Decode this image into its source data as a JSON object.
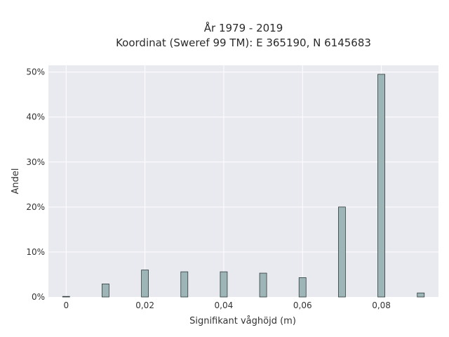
{
  "chart_data": {
    "type": "bar",
    "title_line1": "År 1979 - 2019",
    "title_line2": "Koordinat (Sweref 99 TM): E 365190, N 6145683",
    "xlabel": "Signifikant våghöjd (m)",
    "ylabel": "Andel",
    "x": [
      0.0,
      0.01,
      0.02,
      0.03,
      0.04,
      0.05,
      0.06,
      0.07,
      0.08,
      0.09
    ],
    "values": [
      0.1,
      2.9,
      6.0,
      5.6,
      5.6,
      5.3,
      4.3,
      20.0,
      49.5,
      0.9
    ],
    "xlim": [
      -0.0045,
      0.0945
    ],
    "ylim": [
      0,
      51.5
    ],
    "xticks": [
      0,
      0.02,
      0.04,
      0.06,
      0.08
    ],
    "xtick_labels": [
      "0",
      "0,02",
      "0,04",
      "0,06",
      "0,08"
    ],
    "yticks": [
      0,
      10,
      20,
      30,
      40,
      50
    ],
    "ytick_labels": [
      "0%",
      "10%",
      "20%",
      "30%",
      "40%",
      "50%"
    ],
    "grid": true,
    "colors": {
      "plot_bg": "#e9e9f0",
      "grid": "#ffffff",
      "bar_fill": "#9db5b6",
      "bar_stroke": "#2f3b3b"
    }
  }
}
